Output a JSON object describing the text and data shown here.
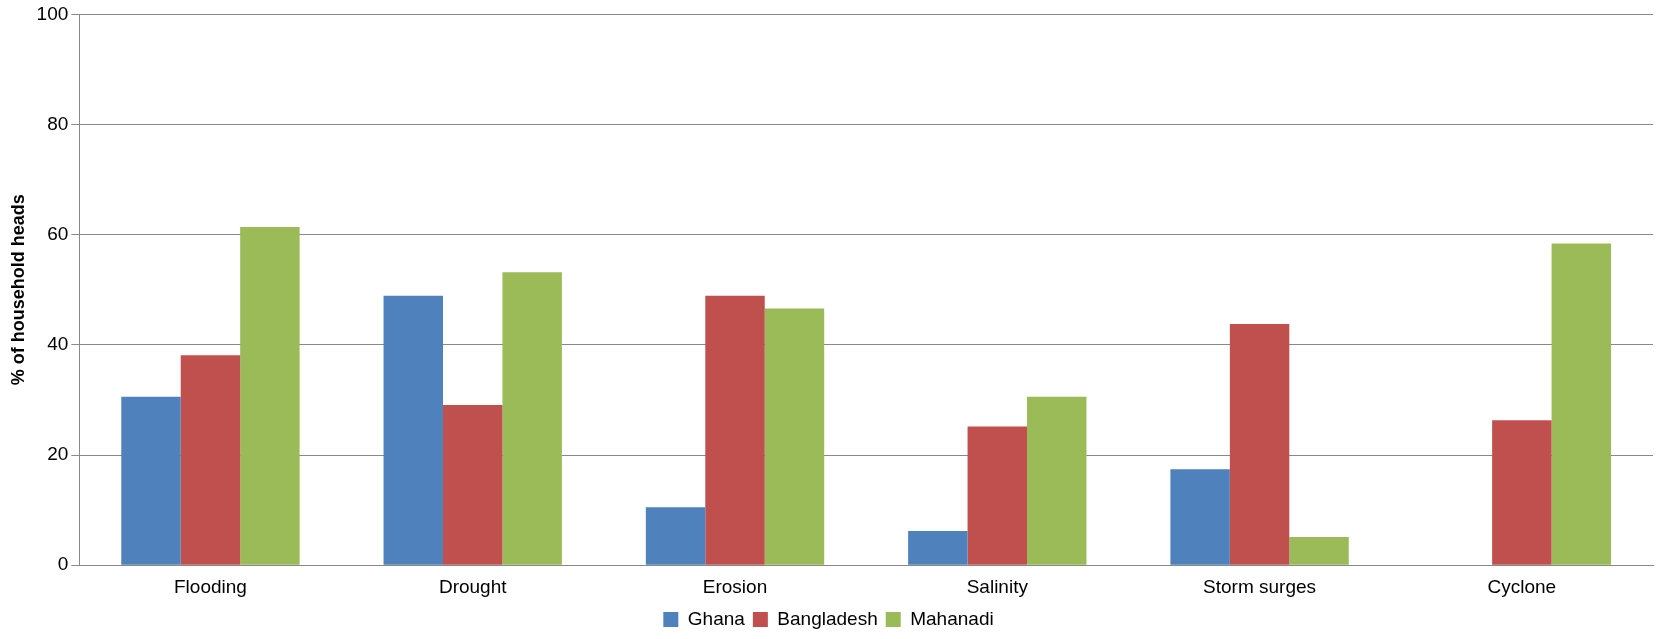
{
  "chart_data": {
    "type": "bar",
    "ylabel": "% of household heads",
    "categories": [
      "Flooding",
      "Drought",
      "Erosion",
      "Salinity",
      "Storm surges",
      "Cyclone"
    ],
    "series": [
      {
        "name": "Ghana",
        "color": "#4f81bd",
        "values": [
          30.6,
          48.9,
          10.5,
          6.2,
          17.4,
          0
        ]
      },
      {
        "name": "Bangladesh",
        "color": "#c0504d",
        "values": [
          38.1,
          29.1,
          48.9,
          25.2,
          43.8,
          26.3
        ]
      },
      {
        "name": "Mahanadi",
        "color": "#9bbb59",
        "values": [
          61.4,
          53.2,
          46.6,
          30.6,
          5.1,
          58.4
        ]
      }
    ],
    "ylim": [
      0,
      100
    ],
    "yticks": [
      0,
      20,
      40,
      60,
      80,
      100
    ],
    "grid": "y",
    "legend": "bottom"
  }
}
